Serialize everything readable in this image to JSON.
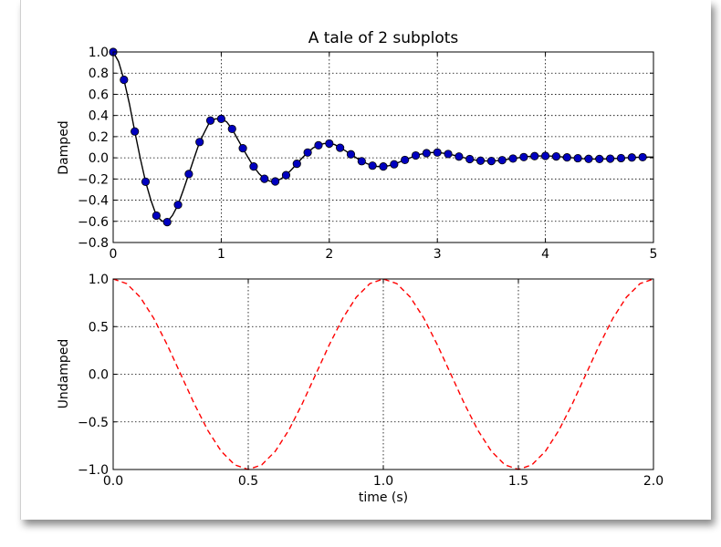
{
  "chart_data": [
    {
      "type": "line",
      "title": "A tale of 2 subplots",
      "xlabel": "",
      "ylabel": "Damped",
      "xlim": [
        0,
        5
      ],
      "ylim": [
        -0.8,
        1.0
      ],
      "grid": true,
      "x_ticks": [
        0,
        1,
        2,
        3,
        4,
        5
      ],
      "y_ticks": [
        -0.8,
        -0.6,
        -0.4,
        -0.2,
        0.0,
        0.2,
        0.4,
        0.6,
        0.8,
        1.0
      ],
      "x_tick_labels": [
        "0",
        "1",
        "2",
        "3",
        "4",
        "5"
      ],
      "y_tick_labels": [
        "−0.8",
        "−0.6",
        "−0.4",
        "−0.2",
        "0.0",
        "0.2",
        "0.4",
        "0.6",
        "0.8",
        "1.0"
      ],
      "series": [
        {
          "style": "solid-line",
          "color": "#000000",
          "x": [
            0.0,
            0.05,
            0.1,
            0.15,
            0.2,
            0.25,
            0.3,
            0.35,
            0.4,
            0.45,
            0.5,
            0.55,
            0.6,
            0.65,
            0.7,
            0.75,
            0.8,
            0.85,
            0.9,
            0.95,
            1.0,
            1.05,
            1.1,
            1.15,
            1.2,
            1.25,
            1.3,
            1.35,
            1.4,
            1.45,
            1.5,
            1.55,
            1.6,
            1.65,
            1.7,
            1.75,
            1.8,
            1.85,
            1.9,
            1.95,
            2.0,
            2.05,
            2.1,
            2.15,
            2.2,
            2.25,
            2.3,
            2.35,
            2.4,
            2.45,
            2.5,
            2.55,
            2.6,
            2.65,
            2.7,
            2.75,
            2.8,
            2.85,
            2.9,
            2.95,
            3.0,
            3.05,
            3.1,
            3.15,
            3.2,
            3.25,
            3.3,
            3.35,
            3.4,
            3.45,
            3.5,
            3.55,
            3.6,
            3.65,
            3.7,
            3.75,
            3.8,
            3.85,
            3.9,
            3.95,
            4.0,
            4.05,
            4.1,
            4.15,
            4.2,
            4.25,
            4.3,
            4.35,
            4.4,
            4.45,
            4.5,
            4.55,
            4.6,
            4.65,
            4.7,
            4.75,
            4.8,
            4.85,
            4.9,
            4.95,
            5.0
          ],
          "y": [
            1.0,
            0.909,
            0.737,
            0.512,
            0.249,
            0.0,
            -0.226,
            -0.403,
            -0.546,
            -0.596,
            -0.607,
            -0.542,
            -0.444,
            -0.303,
            -0.153,
            0.0,
            0.149,
            0.252,
            0.352,
            0.368,
            0.368,
            0.34,
            0.273,
            0.18,
            0.09,
            0.0,
            -0.082,
            -0.15,
            -0.198,
            -0.22,
            -0.223,
            -0.2,
            -0.164,
            -0.112,
            -0.056,
            0.0,
            0.05,
            0.094,
            0.118,
            0.135,
            0.135,
            0.125,
            0.095,
            0.066,
            0.033,
            0.0,
            -0.032,
            -0.055,
            -0.074,
            -0.082,
            -0.082,
            -0.075,
            -0.061,
            -0.04,
            -0.02,
            0.0,
            0.022,
            0.035,
            0.044,
            0.05,
            0.05,
            0.045,
            0.036,
            0.025,
            0.012,
            0.0,
            -0.012,
            -0.021,
            -0.027,
            -0.03,
            -0.03,
            -0.028,
            -0.022,
            -0.015,
            -0.007,
            0.0,
            0.007,
            0.013,
            0.016,
            0.018,
            0.018,
            0.017,
            0.013,
            0.009,
            0.004,
            0.0,
            -0.004,
            -0.008,
            -0.01,
            -0.011,
            -0.011,
            -0.01,
            -0.008,
            -0.006,
            -0.003,
            0.0,
            0.003,
            0.005,
            0.006,
            0.007,
            0.007
          ]
        },
        {
          "style": "markers",
          "color": "#0000bf",
          "x": [
            0.0,
            0.1,
            0.2,
            0.3,
            0.4,
            0.5,
            0.6,
            0.7,
            0.8,
            0.9,
            1.0,
            1.1,
            1.2,
            1.3,
            1.4,
            1.5,
            1.6,
            1.7,
            1.8,
            1.9,
            2.0,
            2.1,
            2.2,
            2.3,
            2.4,
            2.5,
            2.6,
            2.7,
            2.8,
            2.9,
            3.0,
            3.1,
            3.2,
            3.3,
            3.4,
            3.5,
            3.6,
            3.7,
            3.8,
            3.9,
            4.0,
            4.1,
            4.2,
            4.3,
            4.4,
            4.5,
            4.6,
            4.7,
            4.8,
            4.9
          ],
          "y": [
            1.0,
            0.737,
            0.249,
            -0.226,
            -0.546,
            -0.607,
            -0.444,
            -0.153,
            0.149,
            0.352,
            0.368,
            0.273,
            0.09,
            -0.082,
            -0.198,
            -0.223,
            -0.164,
            -0.056,
            0.05,
            0.118,
            0.135,
            0.095,
            0.033,
            -0.032,
            -0.074,
            -0.082,
            -0.061,
            -0.02,
            0.022,
            0.044,
            0.05,
            0.036,
            0.012,
            -0.012,
            -0.027,
            -0.03,
            -0.022,
            -0.007,
            0.007,
            0.016,
            0.018,
            0.013,
            0.004,
            -0.004,
            -0.01,
            -0.011,
            -0.008,
            -0.003,
            0.003,
            0.006
          ]
        }
      ]
    },
    {
      "type": "line",
      "title": "",
      "xlabel": "time (s)",
      "ylabel": "Undamped",
      "xlim": [
        0.0,
        2.0
      ],
      "ylim": [
        -1.0,
        1.0
      ],
      "grid": true,
      "x_ticks": [
        0.0,
        0.5,
        1.0,
        1.5,
        2.0
      ],
      "y_ticks": [
        -1.0,
        -0.5,
        0.0,
        0.5,
        1.0
      ],
      "x_tick_labels": [
        "0.0",
        "0.5",
        "1.0",
        "1.5",
        "2.0"
      ],
      "y_tick_labels": [
        "−1.0",
        "−0.5",
        "0.0",
        "0.5",
        "1.0"
      ],
      "series": [
        {
          "style": "dashed-line",
          "color": "#ff0000",
          "x": [
            0.0,
            0.05,
            0.1,
            0.15,
            0.2,
            0.25,
            0.3,
            0.35,
            0.4,
            0.45,
            0.5,
            0.55,
            0.6,
            0.65,
            0.7,
            0.75,
            0.8,
            0.85,
            0.9,
            0.95,
            1.0,
            1.05,
            1.1,
            1.15,
            1.2,
            1.25,
            1.3,
            1.35,
            1.4,
            1.45,
            1.5,
            1.55,
            1.6,
            1.65,
            1.7,
            1.75,
            1.8,
            1.85,
            1.9,
            1.95,
            2.0
          ],
          "y": [
            1.0,
            0.951,
            0.809,
            0.588,
            0.309,
            0.0,
            -0.309,
            -0.588,
            -0.809,
            -0.951,
            -1.0,
            -0.951,
            -0.809,
            -0.588,
            -0.309,
            0.0,
            0.309,
            0.588,
            0.809,
            0.951,
            1.0,
            0.951,
            0.809,
            0.588,
            0.309,
            0.0,
            -0.309,
            -0.588,
            -0.809,
            -0.951,
            -1.0,
            -0.951,
            -0.809,
            -0.588,
            -0.309,
            0.0,
            0.309,
            0.588,
            0.809,
            0.951,
            1.0
          ]
        }
      ]
    }
  ]
}
